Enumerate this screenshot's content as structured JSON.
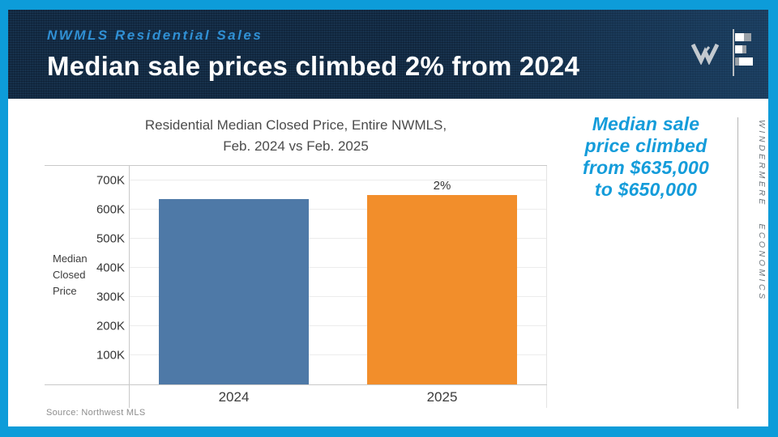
{
  "slide": {
    "header": {
      "eyebrow": "NWMLS Residential Sales",
      "title": "Median sale prices climbed 2% from 2024"
    },
    "callout": {
      "lines": [
        "Median sale",
        "price climbed",
        "from $635,000",
        "to $650,000"
      ],
      "color": "#149cda"
    },
    "brand_vertical": "WINDERMERE ECONOMICS",
    "source": "Source: Northwest MLS"
  },
  "chart_data": {
    "type": "bar",
    "title_lines": [
      "Residential Median Closed Price, Entire NWMLS,",
      "Feb. 2024 vs Feb. 2025"
    ],
    "categories": [
      "2024",
      "2025"
    ],
    "values": [
      635000,
      650000
    ],
    "bar_colors": [
      "#4e79a7",
      "#f28e2b"
    ],
    "bar_labels": [
      "",
      "2%"
    ],
    "ylabel_lines": [
      "Median",
      "Closed",
      "Price"
    ],
    "y_ticks": [
      "700K",
      "600K",
      "500K",
      "400K",
      "300K",
      "200K",
      "100K"
    ],
    "y_tick_values": [
      700000,
      600000,
      500000,
      400000,
      300000,
      200000,
      100000
    ],
    "ylim": [
      0,
      750000
    ],
    "grid": true,
    "legend": "none",
    "source": "Source: Northwest MLS"
  }
}
